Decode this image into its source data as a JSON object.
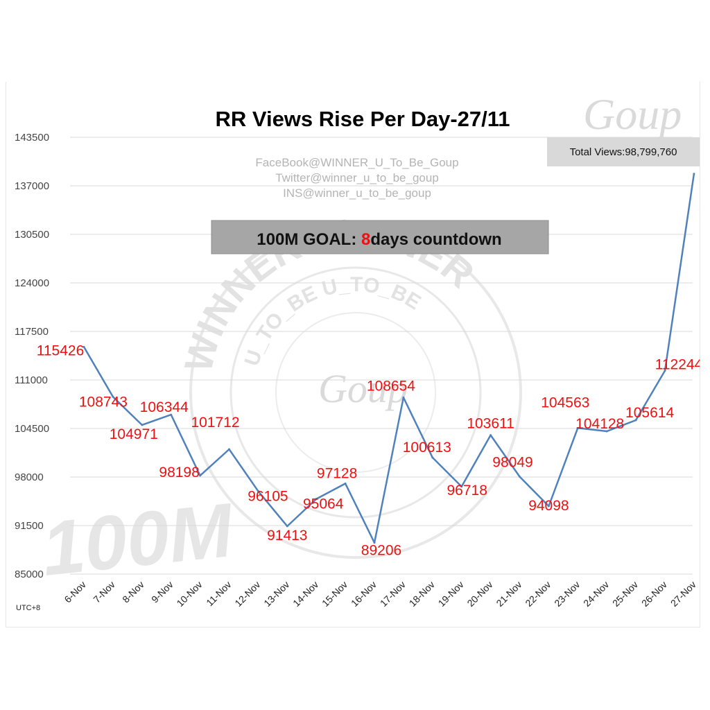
{
  "chart_data": {
    "type": "line",
    "title": "RR Views Rise Per Day-27/11",
    "categories": [
      "6-Nov",
      "7-Nov",
      "8-Nov",
      "9-Nov",
      "10-Nov",
      "11-Nov",
      "12-Nov",
      "13-Nov",
      "14-Nov",
      "15-Nov",
      "16-Nov",
      "17-Nov",
      "18-Nov",
      "19-Nov",
      "20-Nov",
      "21-Nov",
      "22-Nov",
      "23-Nov",
      "24-Nov",
      "25-Nov",
      "26-Nov",
      "27-Nov"
    ],
    "values": [
      115426,
      108743,
      104971,
      106344,
      98198,
      101712,
      96105,
      91413,
      95064,
      97128,
      89206,
      108654,
      100613,
      96718,
      103611,
      98049,
      94098,
      104563,
      104128,
      105614,
      112244,
      138604
    ],
    "y_ticks": [
      "143500",
      "137000",
      "130500",
      "124000",
      "117500",
      "111000",
      "104500",
      "98000",
      "91500",
      "85000"
    ],
    "ylim": [
      85000,
      143500
    ],
    "line_color": "#4f81bd",
    "label_color": "#ee1111",
    "grid": true
  },
  "watermark": {
    "lines": [
      "FaceBook@WINNER_U_To_Be_Goup",
      "Twitter@winner_u_to_be_goup",
      "INS@winner_u_to_be_goup"
    ],
    "seal_outer": "WINNER WINNER",
    "seal_inner": "U_TO_BE U_TO_BE",
    "logo_script": "Goup",
    "big_text": "100M"
  },
  "goal_banner": {
    "prefix": "100M GOAL: ",
    "number": "8",
    "suffix": "days countdown"
  },
  "total_box": {
    "text": "Total Views:98,799,760"
  },
  "timezone": "UTC+8"
}
